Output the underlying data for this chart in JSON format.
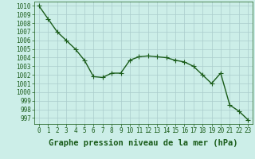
{
  "x": [
    0,
    1,
    2,
    3,
    4,
    5,
    6,
    7,
    8,
    9,
    10,
    11,
    12,
    13,
    14,
    15,
    16,
    17,
    18,
    19,
    20,
    21,
    22,
    23
  ],
  "y": [
    1010,
    1008.5,
    1007,
    1006,
    1005,
    1003.7,
    1001.8,
    1001.7,
    1002.2,
    1002.2,
    1003.7,
    1004.1,
    1004.2,
    1004.1,
    1004.0,
    1003.7,
    1003.5,
    1003.0,
    1002.0,
    1001.0,
    1002.2,
    998.5,
    997.8,
    996.8
  ],
  "line_color": "#1a5c1a",
  "marker": "+",
  "marker_size": 4,
  "bg_color": "#cceee8",
  "grid_color": "#aacccc",
  "xlabel": "Graphe pression niveau de la mer (hPa)",
  "xlabel_fontsize": 7.5,
  "ylabel_ticks": [
    997,
    998,
    999,
    1000,
    1001,
    1002,
    1003,
    1004,
    1005,
    1006,
    1007,
    1008,
    1009,
    1010
  ],
  "ylim": [
    996.3,
    1010.5
  ],
  "xlim": [
    -0.5,
    23.5
  ],
  "xticks": [
    0,
    1,
    2,
    3,
    4,
    5,
    6,
    7,
    8,
    9,
    10,
    11,
    12,
    13,
    14,
    15,
    16,
    17,
    18,
    19,
    20,
    21,
    22,
    23
  ],
  "tick_fontsize": 5.5,
  "line_width": 1.0,
  "marker_color": "#1a5c1a",
  "marker_edge_width": 0.8,
  "text_color": "#1a5c1a"
}
